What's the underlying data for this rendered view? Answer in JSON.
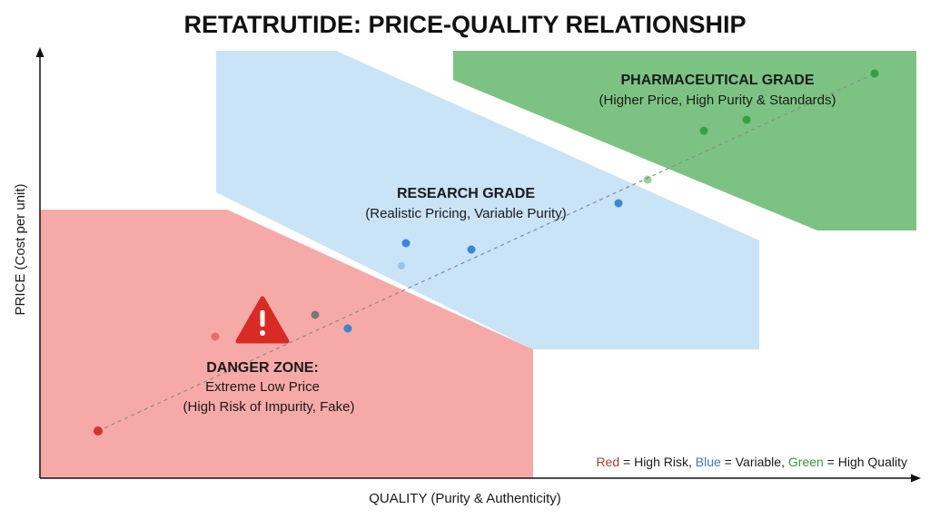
{
  "title": "RETATRUTIDE: PRICE-QUALITY RELATIONSHIP",
  "axes": {
    "x_label": "QUALITY (Purity & Authenticity)",
    "y_label": "PRICE (Cost per unit)"
  },
  "zones": {
    "danger": {
      "title": "DANGER ZONE:",
      "line1": "Extreme Low Price",
      "line2": "(High Risk of Impurity, Fake)",
      "color": "#f6aaa7"
    },
    "research": {
      "title": "RESEARCH GRADE",
      "subtitle": "(Realistic Pricing, Variable Purity)",
      "color": "#c9e3f7"
    },
    "pharma": {
      "title": "PHARMACEUTICAL GRADE",
      "subtitle": "(Higher Price, High Purity & Standards)",
      "color": "#7cc383"
    }
  },
  "legend": {
    "red_word": "Red",
    "red_text": " = High Risk, ",
    "blue_word": "Blue",
    "blue_text": " = Variable, ",
    "green_word": "Green",
    "green_text": " = High Quality",
    "red_color": "#b23a33",
    "blue_color": "#3f78b8",
    "green_color": "#3a9a43"
  },
  "points_colors": {
    "red": "#d9302c",
    "blue": "#3a86d4",
    "green": "#35a044",
    "gray": "#777777"
  },
  "warning_icon": "warning-triangle-icon"
}
